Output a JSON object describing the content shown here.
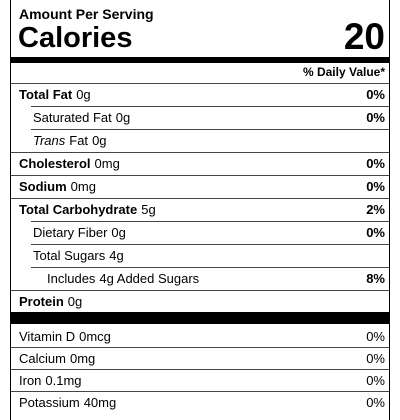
{
  "header": {
    "serving_label": "Amount Per Serving",
    "calories_label": "Calories",
    "calories_value": "20",
    "daily_value_header": "% Daily Value*"
  },
  "nutrients": [
    {
      "name": "Total Fat",
      "amount": "0g",
      "dv": "0%",
      "bold": true,
      "indent": 0
    },
    {
      "name": "Saturated Fat",
      "amount": "0g",
      "dv": "0%",
      "bold": false,
      "indent": 1
    },
    {
      "italic": "Trans",
      "name": "Fat",
      "amount": "0g",
      "bold": false,
      "indent": 1
    },
    {
      "name": "Cholesterol",
      "amount": "0mg",
      "dv": "0%",
      "bold": true,
      "indent": 0
    },
    {
      "name": "Sodium",
      "amount": "0mg",
      "dv": "0%",
      "bold": true,
      "indent": 0
    },
    {
      "name": "Total Carbohydrate",
      "amount": "5g",
      "dv": "2%",
      "bold": true,
      "indent": 0
    },
    {
      "name": "Dietary Fiber",
      "amount": "0g",
      "dv": "0%",
      "bold": false,
      "indent": 1
    },
    {
      "name": "Total Sugars",
      "amount": "4g",
      "bold": false,
      "indent": 1
    },
    {
      "name": "Includes",
      "amount": "4g Added Sugars",
      "dv": "8%",
      "bold": false,
      "indent": 2
    },
    {
      "name": "Protein",
      "amount": "0g",
      "bold": true,
      "indent": 0
    }
  ],
  "vitamins": [
    {
      "name": "Vitamin D",
      "amount": "0mcg",
      "dv": "0%"
    },
    {
      "name": "Calcium",
      "amount": "0mg",
      "dv": "0%"
    },
    {
      "name": "Iron",
      "amount": "0.1mg",
      "dv": "0%"
    },
    {
      "name": "Potassium",
      "amount": "40mg",
      "dv": "0%"
    }
  ]
}
